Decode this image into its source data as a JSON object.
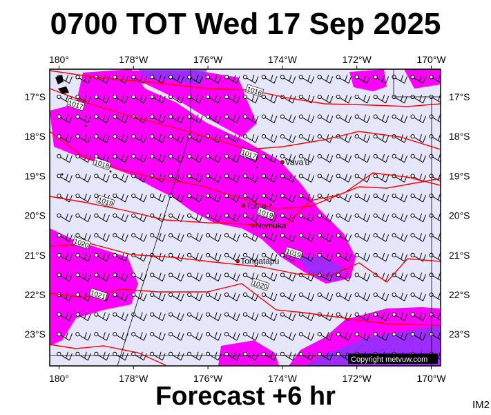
{
  "title": "0700 TOT Wed 17 Sep 2025",
  "footer": "Forecast +6 hr",
  "code": "IM2",
  "copyright": "Copyright metvuw.com",
  "lon_labels": [
    "180°",
    "178°W",
    "176°W",
    "174°W",
    "172°W",
    "170°W"
  ],
  "lat_labels": [
    "17°S",
    "18°S",
    "19°S",
    "20°S",
    "21°S",
    "22°S",
    "23°S"
  ],
  "places": [
    {
      "name": "Vava'u",
      "lon": -174.0,
      "lat": -18.65
    },
    {
      "name": "Tofua",
      "lon": -175.05,
      "lat": -19.75
    },
    {
      "name": "Nomuka",
      "lon": -174.8,
      "lat": -20.25
    },
    {
      "name": "Tongatapu",
      "lon": -175.2,
      "lat": -21.15
    }
  ],
  "isobars": [
    {
      "label": "1016",
      "lon": -174.75,
      "lat": -16.85
    },
    {
      "label": "1017",
      "lon": -179.55,
      "lat": -17.2
    },
    {
      "label": "1017",
      "lon": -174.9,
      "lat": -18.45
    },
    {
      "label": "1018",
      "lon": -178.85,
      "lat": -18.7
    },
    {
      "label": "1019",
      "lon": -178.75,
      "lat": -19.65
    },
    {
      "label": "1019",
      "lon": -174.45,
      "lat": -19.95
    },
    {
      "label": "1019",
      "lon": -173.7,
      "lat": -20.95
    },
    {
      "label": "1020",
      "lon": -179.4,
      "lat": -20.7
    },
    {
      "label": "1020",
      "lon": -174.6,
      "lat": -21.75
    },
    {
      "label": "1021",
      "lon": -178.95,
      "lat": -22.0
    }
  ],
  "colors": {
    "background": "#e6e6fa",
    "rain_light": "#ff00ff",
    "rain_heavy": "#7b3bff",
    "isobar": "#ff0000",
    "barb": "#000000"
  },
  "map_extent": {
    "lon_min": -180.25,
    "lon_max": -169.75,
    "lat_max": -16.3,
    "lat_min": -23.8
  }
}
